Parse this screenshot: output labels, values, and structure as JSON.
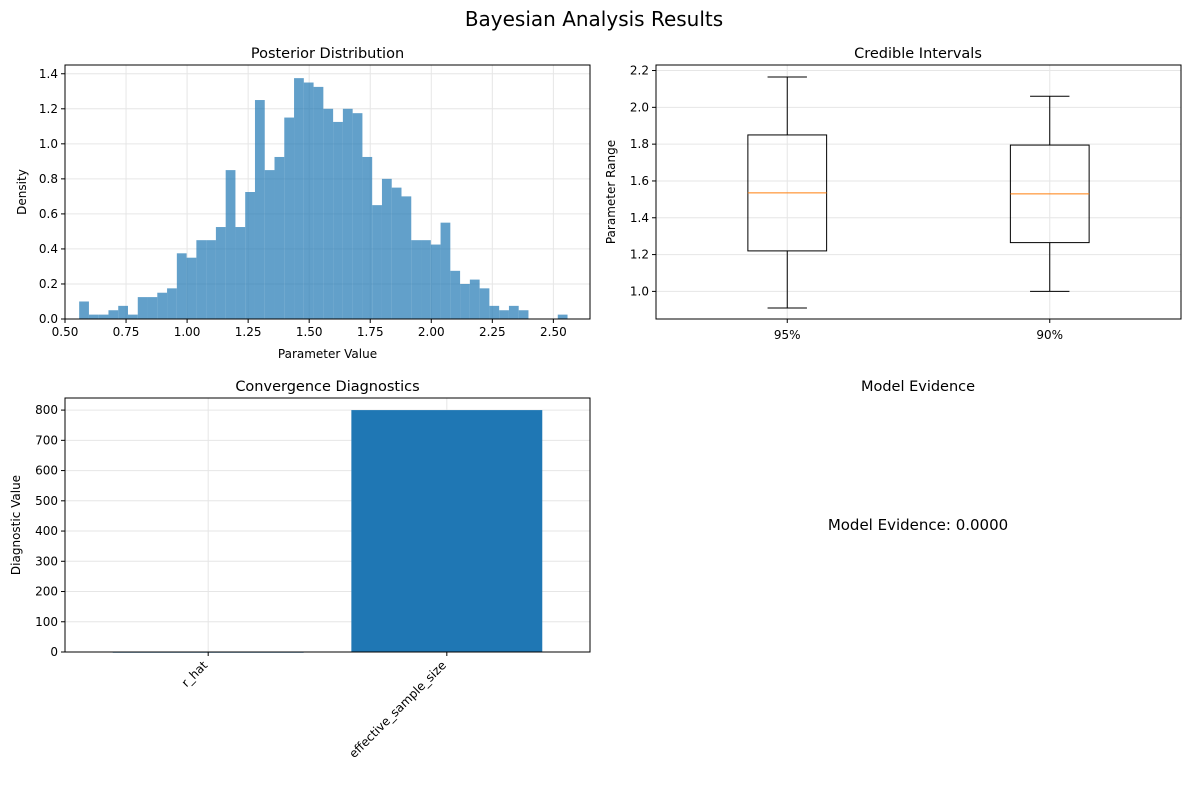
{
  "figure": {
    "suptitle": "Bayesian Analysis Results"
  },
  "chart_data": [
    {
      "type": "bar",
      "subtype": "histogram",
      "title": "Posterior Distribution",
      "xlabel": "Parameter Value",
      "ylabel": "Density",
      "xlim": [
        0.5,
        2.65
      ],
      "ylim": [
        0,
        1.45
      ],
      "xticks": [
        "0.50",
        "0.75",
        "1.00",
        "1.25",
        "1.50",
        "1.75",
        "2.00",
        "2.25",
        "2.50"
      ],
      "yticks": [
        "0.0",
        "0.2",
        "0.4",
        "0.6",
        "0.8",
        "1.0",
        "1.2",
        "1.4"
      ],
      "grid": true,
      "color": "#1f77b4",
      "alpha": 0.7,
      "bin_start": 0.558,
      "bin_width": 0.04,
      "values": [
        0.1,
        0.025,
        0.025,
        0.05,
        0.075,
        0.025,
        0.125,
        0.125,
        0.15,
        0.175,
        0.375,
        0.35,
        0.45,
        0.45,
        0.525,
        0.85,
        0.525,
        0.725,
        1.25,
        0.85,
        0.925,
        1.15,
        1.375,
        1.35,
        1.325,
        1.2,
        1.125,
        1.2,
        1.175,
        0.925,
        0.65,
        0.8,
        0.75,
        0.7,
        0.45,
        0.45,
        0.425,
        0.55,
        0.275,
        0.2,
        0.225,
        0.175,
        0.075,
        0.05,
        0.075,
        0.05,
        0,
        0,
        0,
        0.025
      ]
    },
    {
      "type": "box",
      "title": "Credible Intervals",
      "ylabel": "Parameter Range",
      "categories": [
        "95%",
        "90%"
      ],
      "ylim": [
        0.85,
        2.23
      ],
      "yticks": [
        "1.0",
        "1.2",
        "1.4",
        "1.6",
        "1.8",
        "2.0",
        "2.2"
      ],
      "grid": true,
      "median_color": "#ff7f0e",
      "boxes": [
        {
          "label": "95%",
          "whisker_low": 0.91,
          "q1": 1.22,
          "median": 1.535,
          "q3": 1.85,
          "whisker_high": 2.165
        },
        {
          "label": "90%",
          "whisker_low": 1.0,
          "q1": 1.265,
          "median": 1.53,
          "q3": 1.795,
          "whisker_high": 2.06
        }
      ]
    },
    {
      "type": "bar",
      "title": "Convergence Diagnostics",
      "ylabel": "Diagnostic Value",
      "categories": [
        "r_hat",
        "effective_sample_size"
      ],
      "values": [
        1.0,
        800
      ],
      "ylim": [
        0,
        840
      ],
      "yticks": [
        "0",
        "100",
        "200",
        "300",
        "400",
        "500",
        "600",
        "700",
        "800"
      ],
      "grid": true,
      "color": "#1f77b4"
    },
    {
      "type": "text",
      "title": "Model Evidence",
      "text": "Model Evidence: 0.0000"
    }
  ]
}
